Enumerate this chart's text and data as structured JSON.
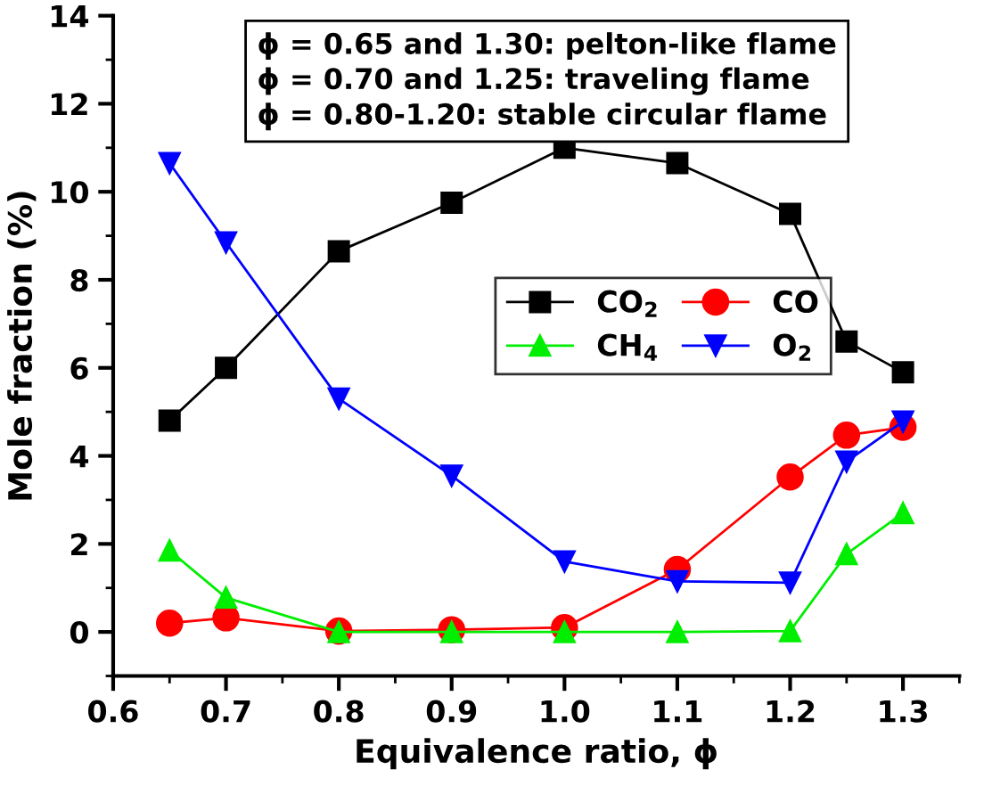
{
  "chart_data": {
    "type": "line",
    "xlabel": "Equivalence ratio, ϕ",
    "ylabel": "Mole fraction (%)",
    "x": [
      0.65,
      0.7,
      0.8,
      0.9,
      1.0,
      1.1,
      1.2,
      1.25,
      1.3
    ],
    "series": [
      {
        "name": "CO$_{2}$",
        "color": "#000000",
        "marker": "square",
        "values": [
          4.8,
          6.0,
          8.65,
          9.75,
          11.0,
          10.65,
          9.5,
          6.6,
          5.9
        ]
      },
      {
        "name": "CO",
        "color": "#ff0000",
        "marker": "circle",
        "values": [
          0.2,
          0.32,
          0.02,
          0.05,
          0.1,
          1.42,
          3.52,
          4.47,
          4.65
        ]
      },
      {
        "name": "CH$_{4}$",
        "color": "#00ee00",
        "marker": "triangle",
        "values": [
          1.85,
          0.78,
          0.0,
          0.0,
          0.0,
          0.0,
          0.02,
          1.77,
          2.7
        ]
      },
      {
        "name": "O$_{2}$",
        "color": "#0000ff",
        "marker": "triangle_down",
        "values": [
          10.65,
          8.85,
          5.3,
          3.55,
          1.6,
          1.15,
          1.12,
          3.87,
          4.78
        ]
      }
    ],
    "xlim": [
      0.6,
      1.35
    ],
    "xticks": [
      {
        "value": 0.6,
        "label": "0.6"
      },
      {
        "value": 0.7,
        "label": "0.7"
      },
      {
        "value": 0.8,
        "label": "0.8"
      },
      {
        "value": 0.9,
        "label": "0.9"
      },
      {
        "value": 1.0,
        "label": "1.0"
      },
      {
        "value": 1.1,
        "label": "1.1"
      },
      {
        "value": 1.2,
        "label": "1.2"
      },
      {
        "value": 1.3,
        "label": "1.3"
      }
    ],
    "ylim": [
      -1,
      14
    ],
    "yticks": [
      0,
      2,
      4,
      6,
      8,
      10,
      12,
      14
    ],
    "annotations": [
      "ϕ = 0.65 and 1.30: pelton-like flame\nϕ = 0.70 and 1.25: traveling flame\nϕ = 0.80-1.20: stable circular flame"
    ],
    "legend": "center",
    "grid": false,
    "line_style": "solid"
  }
}
